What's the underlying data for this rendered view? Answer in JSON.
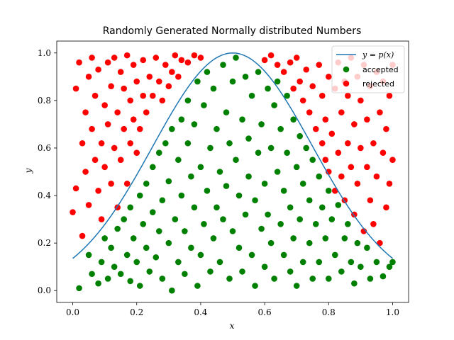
{
  "chart_data": {
    "type": "scatter",
    "title": "Randomly Generated Normally distributed Numbers",
    "xlabel": "x",
    "ylabel": "y",
    "xlim": [
      -0.05,
      1.05
    ],
    "ylim": [
      -0.05,
      1.05
    ],
    "xticks": [
      "0.0",
      "0.2",
      "0.4",
      "0.6",
      "0.8",
      "1.0"
    ],
    "yticks": [
      "0.0",
      "0.2",
      "0.4",
      "0.6",
      "0.8",
      "1.0"
    ],
    "grid": false,
    "legend_position": "top-right",
    "curve": {
      "name": "y = p(x)",
      "color": "#1f77b4",
      "mu": 0.5,
      "sigma": 0.25
    },
    "series": [
      {
        "name": "accepted",
        "color": "#008000",
        "points": [
          [
            0.02,
            0.01
          ],
          [
            0.05,
            0.15
          ],
          [
            0.06,
            0.07
          ],
          [
            0.08,
            0.03
          ],
          [
            0.09,
            0.12
          ],
          [
            0.1,
            0.22
          ],
          [
            0.11,
            0.05
          ],
          [
            0.12,
            0.18
          ],
          [
            0.13,
            0.1
          ],
          [
            0.14,
            0.26
          ],
          [
            0.15,
            0.07
          ],
          [
            0.16,
            0.3
          ],
          [
            0.17,
            0.15
          ],
          [
            0.18,
            0.04
          ],
          [
            0.18,
            0.35
          ],
          [
            0.19,
            0.22
          ],
          [
            0.2,
            0.12
          ],
          [
            0.21,
            0.4
          ],
          [
            0.21,
            0.02
          ],
          [
            0.22,
            0.28
          ],
          [
            0.23,
            0.45
          ],
          [
            0.23,
            0.18
          ],
          [
            0.24,
            0.08
          ],
          [
            0.25,
            0.33
          ],
          [
            0.25,
            0.52
          ],
          [
            0.26,
            0.14
          ],
          [
            0.27,
            0.25
          ],
          [
            0.27,
            0.58
          ],
          [
            0.28,
            0.38
          ],
          [
            0.28,
            0.05
          ],
          [
            0.29,
            0.62
          ],
          [
            0.3,
            0.2
          ],
          [
            0.3,
            0.46
          ],
          [
            0.31,
            0.0
          ],
          [
            0.31,
            0.68
          ],
          [
            0.32,
            0.3
          ],
          [
            0.33,
            0.12
          ],
          [
            0.33,
            0.55
          ],
          [
            0.34,
            0.72
          ],
          [
            0.34,
            0.4
          ],
          [
            0.35,
            0.07
          ],
          [
            0.35,
            0.25
          ],
          [
            0.36,
            0.62
          ],
          [
            0.36,
            0.8
          ],
          [
            0.37,
            0.18
          ],
          [
            0.37,
            0.48
          ],
          [
            0.38,
            0.35
          ],
          [
            0.38,
            0.7
          ],
          [
            0.39,
            0.02
          ],
          [
            0.39,
            0.88
          ],
          [
            0.4,
            0.52
          ],
          [
            0.4,
            0.15
          ],
          [
            0.41,
            0.28
          ],
          [
            0.41,
            0.78
          ],
          [
            0.42,
            0.42
          ],
          [
            0.42,
            0.92
          ],
          [
            0.43,
            0.6
          ],
          [
            0.43,
            0.08
          ],
          [
            0.44,
            0.22
          ],
          [
            0.44,
            0.85
          ],
          [
            0.45,
            0.35
          ],
          [
            0.45,
            0.68
          ],
          [
            0.46,
            0.5
          ],
          [
            0.46,
            0.12
          ],
          [
            0.47,
            0.95
          ],
          [
            0.47,
            0.3
          ],
          [
            0.48,
            0.75
          ],
          [
            0.48,
            0.44
          ],
          [
            0.49,
            0.05
          ],
          [
            0.49,
            0.62
          ],
          [
            0.5,
            0.88
          ],
          [
            0.5,
            0.25
          ],
          [
            0.51,
            0.55
          ],
          [
            0.51,
            0.98
          ],
          [
            0.52,
            0.18
          ],
          [
            0.52,
            0.4
          ],
          [
            0.53,
            0.72
          ],
          [
            0.53,
            0.08
          ],
          [
            0.54,
            0.32
          ],
          [
            0.54,
            0.9
          ],
          [
            0.55,
            0.48
          ],
          [
            0.55,
            0.64
          ],
          [
            0.56,
            0.15
          ],
          [
            0.56,
            0.82
          ],
          [
            0.57,
            0.38
          ],
          [
            0.57,
            0.02
          ],
          [
            0.58,
            0.58
          ],
          [
            0.58,
            0.92
          ],
          [
            0.59,
            0.26
          ],
          [
            0.59,
            0.7
          ],
          [
            0.6,
            0.45
          ],
          [
            0.6,
            0.1
          ],
          [
            0.61,
            0.85
          ],
          [
            0.61,
            0.32
          ],
          [
            0.62,
            0.6
          ],
          [
            0.62,
            0.2
          ],
          [
            0.63,
            0.78
          ],
          [
            0.63,
            0.05
          ],
          [
            0.64,
            0.5
          ],
          [
            0.64,
            0.88
          ],
          [
            0.65,
            0.28
          ],
          [
            0.65,
            0.68
          ],
          [
            0.66,
            0.15
          ],
          [
            0.66,
            0.42
          ],
          [
            0.67,
            0.82
          ],
          [
            0.67,
            0.58
          ],
          [
            0.68,
            0.08
          ],
          [
            0.68,
            0.35
          ],
          [
            0.69,
            0.72
          ],
          [
            0.69,
            0.22
          ],
          [
            0.7,
            0.52
          ],
          [
            0.7,
            0.02
          ],
          [
            0.71,
            0.65
          ],
          [
            0.71,
            0.3
          ],
          [
            0.72,
            0.12
          ],
          [
            0.72,
            0.45
          ],
          [
            0.73,
            0.6
          ],
          [
            0.74,
            0.2
          ],
          [
            0.74,
            0.38
          ],
          [
            0.75,
            0.05
          ],
          [
            0.75,
            0.55
          ],
          [
            0.76,
            0.28
          ],
          [
            0.77,
            0.48
          ],
          [
            0.77,
            0.12
          ],
          [
            0.78,
            0.35
          ],
          [
            0.79,
            0.22
          ],
          [
            0.8,
            0.42
          ],
          [
            0.8,
            0.05
          ],
          [
            0.81,
            0.3
          ],
          [
            0.82,
            0.15
          ],
          [
            0.83,
            0.36
          ],
          [
            0.84,
            0.08
          ],
          [
            0.85,
            0.22
          ],
          [
            0.86,
            0.28
          ],
          [
            0.87,
            0.12
          ],
          [
            0.88,
            0.03
          ],
          [
            0.89,
            0.2
          ],
          [
            0.9,
            0.1
          ],
          [
            0.92,
            0.18
          ],
          [
            0.93,
            0.05
          ],
          [
            0.95,
            0.12
          ],
          [
            0.97,
            0.06
          ],
          [
            0.99,
            0.1
          ],
          [
            1.0,
            0.12
          ]
        ]
      },
      {
        "name": "rejected",
        "color": "#ff0000",
        "points": [
          [
            0.0,
            0.33
          ],
          [
            0.01,
            0.85
          ],
          [
            0.01,
            0.43
          ],
          [
            0.02,
            0.96
          ],
          [
            0.03,
            0.62
          ],
          [
            0.03,
            0.23
          ],
          [
            0.04,
            0.75
          ],
          [
            0.04,
            0.5
          ],
          [
            0.05,
            0.9
          ],
          [
            0.05,
            0.36
          ],
          [
            0.06,
            0.68
          ],
          [
            0.06,
            0.98
          ],
          [
            0.07,
            0.55
          ],
          [
            0.07,
            0.82
          ],
          [
            0.08,
            0.42
          ],
          [
            0.08,
            0.93
          ],
          [
            0.09,
            0.62
          ],
          [
            0.09,
            0.3
          ],
          [
            0.1,
            0.78
          ],
          [
            0.1,
            0.52
          ],
          [
            0.11,
            0.96
          ],
          [
            0.11,
            0.7
          ],
          [
            0.12,
            0.45
          ],
          [
            0.12,
            0.86
          ],
          [
            0.13,
            0.6
          ],
          [
            0.13,
            0.98
          ],
          [
            0.14,
            0.35
          ],
          [
            0.14,
            0.75
          ],
          [
            0.15,
            0.92
          ],
          [
            0.15,
            0.55
          ],
          [
            0.16,
            0.68
          ],
          [
            0.16,
            0.85
          ],
          [
            0.17,
            0.45
          ],
          [
            0.17,
            0.99
          ],
          [
            0.18,
            0.62
          ],
          [
            0.18,
            0.8
          ],
          [
            0.19,
            0.72
          ],
          [
            0.19,
            0.95
          ],
          [
            0.2,
            0.58
          ],
          [
            0.2,
            0.88
          ],
          [
            0.21,
            0.68
          ],
          [
            0.22,
            0.82
          ],
          [
            0.22,
            0.97
          ],
          [
            0.23,
            0.75
          ],
          [
            0.24,
            0.9
          ],
          [
            0.25,
            0.82
          ],
          [
            0.26,
            0.98
          ],
          [
            0.27,
            0.88
          ],
          [
            0.28,
            0.8
          ],
          [
            0.29,
            0.95
          ],
          [
            0.3,
            0.86
          ],
          [
            0.31,
            0.92
          ],
          [
            0.32,
            0.99
          ],
          [
            0.33,
            0.9
          ],
          [
            0.34,
            0.97
          ],
          [
            0.36,
            0.96
          ],
          [
            0.38,
            0.99
          ],
          [
            0.4,
            0.98
          ],
          [
            0.6,
            0.97
          ],
          [
            0.62,
            0.99
          ],
          [
            0.64,
            0.95
          ],
          [
            0.66,
            0.92
          ],
          [
            0.68,
            0.96
          ],
          [
            0.69,
            0.85
          ],
          [
            0.7,
            0.98
          ],
          [
            0.71,
            0.88
          ],
          [
            0.72,
            0.8
          ],
          [
            0.73,
            0.93
          ],
          [
            0.74,
            0.75
          ],
          [
            0.75,
            0.86
          ],
          [
            0.76,
            0.68
          ],
          [
            0.77,
            0.95
          ],
          [
            0.78,
            0.62
          ],
          [
            0.78,
            0.82
          ],
          [
            0.79,
            0.55
          ],
          [
            0.79,
            0.72
          ],
          [
            0.8,
            0.9
          ],
          [
            0.8,
            0.5
          ],
          [
            0.81,
            0.66
          ],
          [
            0.82,
            0.85
          ],
          [
            0.82,
            0.42
          ],
          [
            0.83,
            0.58
          ],
          [
            0.83,
            0.96
          ],
          [
            0.84,
            0.75
          ],
          [
            0.84,
            0.48
          ],
          [
            0.85,
            0.88
          ],
          [
            0.85,
            0.38
          ],
          [
            0.86,
            0.62
          ],
          [
            0.86,
            0.82
          ],
          [
            0.87,
            0.52
          ],
          [
            0.87,
            0.98
          ],
          [
            0.88,
            0.7
          ],
          [
            0.88,
            0.32
          ],
          [
            0.89,
            0.9
          ],
          [
            0.89,
            0.45
          ],
          [
            0.9,
            0.6
          ],
          [
            0.9,
            0.8
          ],
          [
            0.91,
            0.25
          ],
          [
            0.91,
            0.95
          ],
          [
            0.92,
            0.52
          ],
          [
            0.92,
            0.72
          ],
          [
            0.93,
            0.38
          ],
          [
            0.93,
            0.86
          ],
          [
            0.94,
            0.62
          ],
          [
            0.94,
            0.28
          ],
          [
            0.95,
            0.92
          ],
          [
            0.95,
            0.48
          ],
          [
            0.96,
            0.75
          ],
          [
            0.96,
            0.2
          ],
          [
            0.97,
            0.58
          ],
          [
            0.97,
            0.88
          ],
          [
            0.98,
            0.35
          ],
          [
            0.98,
            0.68
          ],
          [
            0.99,
            0.82
          ],
          [
            0.99,
            0.45
          ],
          [
            1.0,
            0.55
          ],
          [
            1.0,
            0.95
          ]
        ]
      }
    ]
  }
}
